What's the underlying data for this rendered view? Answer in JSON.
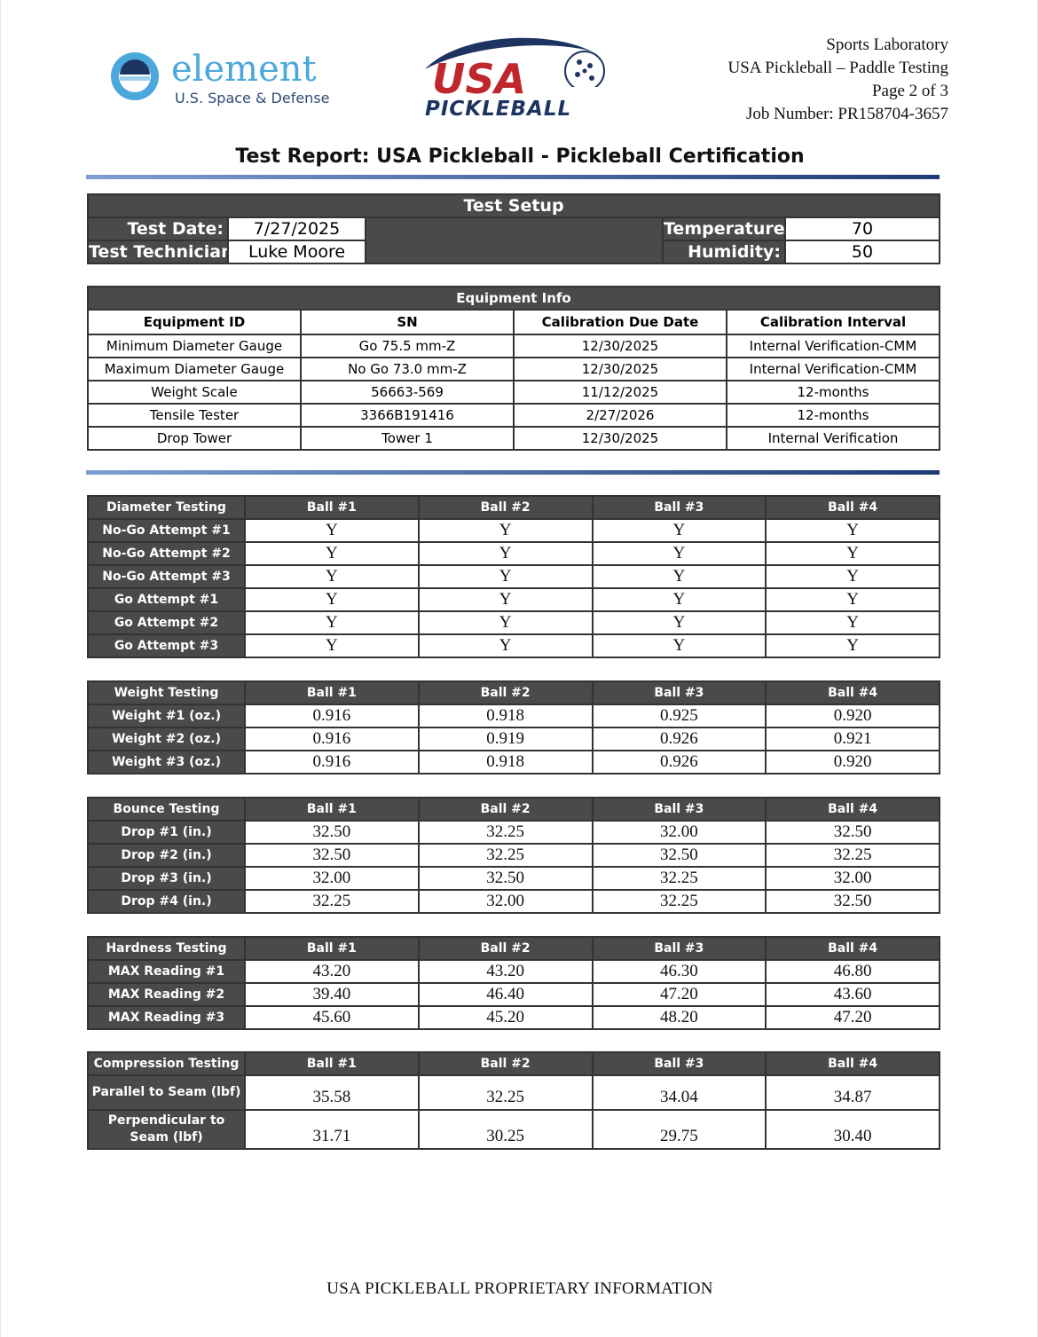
{
  "header": {
    "element_logo": {
      "name": "element",
      "tagline": "U.S. Space & Defense"
    },
    "usa_logo": {
      "line1": "USA",
      "line2": "PICKLEBALL"
    },
    "right_lines": [
      "Sports Laboratory",
      "USA Pickleball – Paddle Testing",
      "Page 2 of 3",
      "Job Number: PR158704-3657"
    ]
  },
  "title": "Test Report: USA Pickleball - Pickleball Certification",
  "test_setup": {
    "heading": "Test Setup",
    "test_date_label": "Test Date:",
    "test_date": "7/27/2025",
    "technician_label": "Test Technician:",
    "technician": "Luke Moore",
    "temperature_label": "Temperature:",
    "temperature": "70",
    "humidity_label": "Humidity:",
    "humidity": "50"
  },
  "equipment": {
    "heading": "Equipment Info",
    "columns": [
      "Equipment ID",
      "SN",
      "Calibration Due Date",
      "Calibration Interval"
    ],
    "rows": [
      [
        "Minimum Diameter Gauge",
        "Go 75.5 mm-Z",
        "12/30/2025",
        "Internal Verification-CMM"
      ],
      [
        "Maximum Diameter Gauge",
        "No Go 73.0 mm-Z",
        "12/30/2025",
        "Internal Verification-CMM"
      ],
      [
        "Weight Scale",
        "56663-569",
        "11/12/2025",
        "12-months"
      ],
      [
        "Tensile Tester",
        "3366B191416",
        "2/27/2026",
        "12-months"
      ],
      [
        "Drop Tower",
        "Tower 1",
        "12/30/2025",
        "Internal Verification"
      ]
    ]
  },
  "ball_columns": [
    "Ball #1",
    "Ball #2",
    "Ball #3",
    "Ball #4"
  ],
  "tests": [
    {
      "id": "diameter",
      "heading": "Diameter Testing",
      "rows": [
        {
          "label": "No-Go Attempt #1",
          "values": [
            "Y",
            "Y",
            "Y",
            "Y"
          ]
        },
        {
          "label": "No-Go Attempt #2",
          "values": [
            "Y",
            "Y",
            "Y",
            "Y"
          ]
        },
        {
          "label": "No-Go Attempt #3",
          "values": [
            "Y",
            "Y",
            "Y",
            "Y"
          ]
        },
        {
          "label": "Go Attempt #1",
          "values": [
            "Y",
            "Y",
            "Y",
            "Y"
          ]
        },
        {
          "label": "Go Attempt #2",
          "values": [
            "Y",
            "Y",
            "Y",
            "Y"
          ]
        },
        {
          "label": "Go Attempt #3",
          "values": [
            "Y",
            "Y",
            "Y",
            "Y"
          ]
        }
      ]
    },
    {
      "id": "weight",
      "heading": "Weight Testing",
      "rows": [
        {
          "label": "Weight #1 (oz.)",
          "values": [
            "0.916",
            "0.918",
            "0.925",
            "0.920"
          ]
        },
        {
          "label": "Weight #2 (oz.)",
          "values": [
            "0.916",
            "0.919",
            "0.926",
            "0.921"
          ]
        },
        {
          "label": "Weight #3 (oz.)",
          "values": [
            "0.916",
            "0.918",
            "0.926",
            "0.920"
          ]
        }
      ]
    },
    {
      "id": "bounce",
      "heading": "Bounce Testing",
      "rows": [
        {
          "label": "Drop #1 (in.)",
          "values": [
            "32.50",
            "32.25",
            "32.00",
            "32.50"
          ]
        },
        {
          "label": "Drop #2 (in.)",
          "values": [
            "32.50",
            "32.25",
            "32.50",
            "32.25"
          ]
        },
        {
          "label": "Drop #3 (in.)",
          "values": [
            "32.00",
            "32.50",
            "32.25",
            "32.00"
          ]
        },
        {
          "label": "Drop #4 (in.)",
          "values": [
            "32.25",
            "32.00",
            "32.25",
            "32.50"
          ]
        }
      ]
    },
    {
      "id": "hardness",
      "heading": "Hardness Testing",
      "rows": [
        {
          "label": "MAX Reading #1",
          "values": [
            "43.20",
            "43.20",
            "46.30",
            "46.80"
          ]
        },
        {
          "label": "MAX Reading #2",
          "values": [
            "39.40",
            "46.40",
            "47.20",
            "43.60"
          ]
        },
        {
          "label": "MAX Reading #3",
          "values": [
            "45.60",
            "45.20",
            "48.20",
            "47.20"
          ]
        }
      ]
    },
    {
      "id": "compression",
      "heading": "Compression Testing",
      "rows": [
        {
          "label": "Parallel to Seam (lbf)",
          "values": [
            "35.58",
            "32.25",
            "34.04",
            "34.87"
          ]
        },
        {
          "label": "Perpendicular to Seam (lbf)",
          "values": [
            "31.71",
            "30.25",
            "29.75",
            "30.40"
          ]
        }
      ]
    }
  ],
  "footer": "USA PICKLEBALL PROPRIETARY INFORMATION",
  "colors": {
    "header_fill": "#4a4a4a",
    "rule_start": "#7f9fd0",
    "rule_end": "#1f3b73",
    "element_blue": "#4aa8dc",
    "usa_red": "#c0272d",
    "usa_navy": "#1d3461"
  }
}
